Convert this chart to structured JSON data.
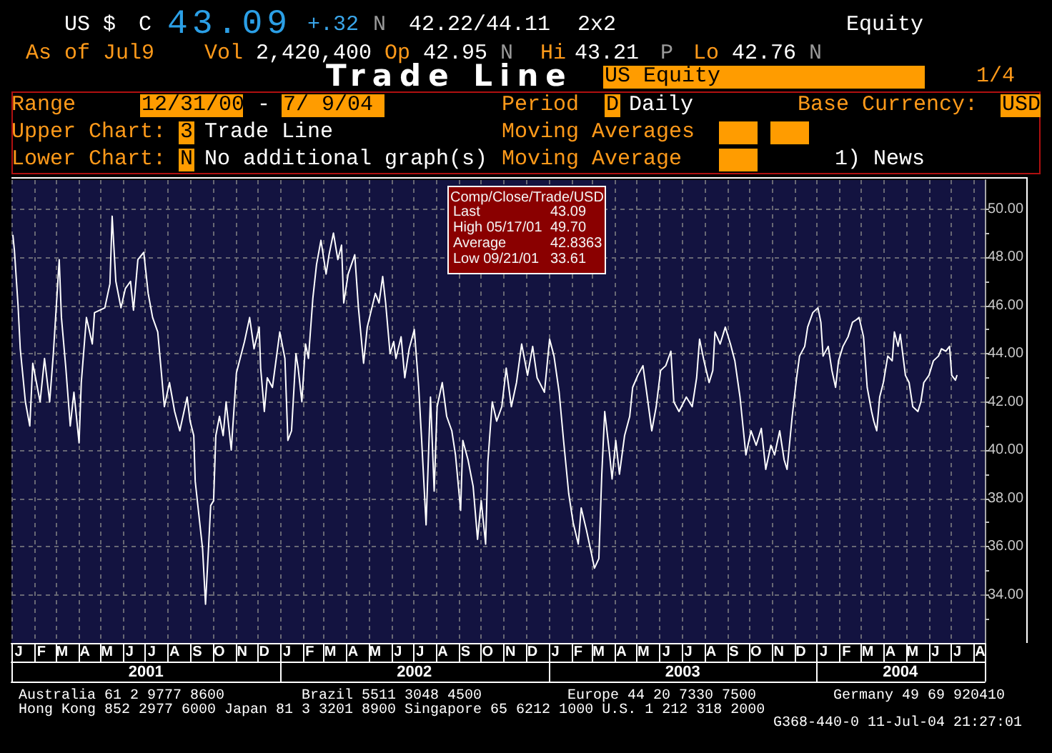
{
  "chart_data": {
    "type": "line",
    "title": "Trade Line",
    "annotations": [
      "US $",
      "C",
      "43.09",
      "+.32",
      "N",
      "42.22/44.11",
      "2x2",
      "Equity",
      "As of Jul9",
      "Vol",
      "2,420,400",
      "Op",
      "42.95",
      "N",
      "Hi",
      "43.21",
      "P",
      "Lo",
      "42.76",
      "N",
      "US Equity",
      "1/4",
      "Range",
      "12/31/00",
      "-",
      "7/ 9/04",
      "Period",
      "D",
      "Daily",
      "Base Currency:",
      "USD",
      "Upper Chart:",
      "3",
      "Trade Line",
      "Moving Averages",
      "Lower Chart:",
      "N",
      "No additional graph(s)",
      "Moving Average",
      "1) News",
      "Comp/Close/Trade/USD",
      "Last",
      "43.09",
      "High 05/17/01",
      "49.70",
      "Average",
      "42.8363",
      "Low 09/21/01",
      "33.61",
      "J",
      "F",
      "M",
      "A",
      "M",
      "J",
      "J",
      "A",
      "S",
      "O",
      "N",
      "D",
      "J",
      "F",
      "M",
      "A",
      "M",
      "J",
      "J",
      "A",
      "S",
      "O",
      "N",
      "D",
      "J",
      "F",
      "M",
      "A",
      "M",
      "J",
      "J",
      "A",
      "S",
      "O",
      "N",
      "D",
      "J",
      "F",
      "M",
      "A",
      "M",
      "J",
      "J",
      "A",
      "Australia 61 2 9777 8600",
      "Brazil 5511 3048 4500",
      "Europe 44 20 7330 7500",
      "Germany 49 69 920410",
      "Hong Kong 852 2977 6000 Japan 81 3 3201 8900 Singapore 65 6212 1000 U.S. 1 212 318 2000",
      "G368-440-0 11-Jul-04 21:27:01"
    ],
    "x": [
      "2001-01-02",
      "2001-01-04",
      "2001-01-09",
      "2001-01-12",
      "2001-01-19",
      "2001-01-25",
      "2001-01-29",
      "2001-02-08",
      "2001-02-14",
      "2001-02-21",
      "2001-02-26",
      "2001-03-06",
      "2001-03-09",
      "2001-03-15",
      "2001-03-21",
      "2001-03-26",
      "2001-04-02",
      "2001-04-05",
      "2001-04-12",
      "2001-04-20",
      "2001-04-23",
      "2001-05-07",
      "2001-05-14",
      "2001-05-17",
      "2001-05-22",
      "2001-05-29",
      "2001-06-04",
      "2001-06-11",
      "2001-06-15",
      "2001-06-21",
      "2001-06-29",
      "2001-07-05",
      "2001-07-11",
      "2001-07-18",
      "2001-07-23",
      "2001-07-27",
      "2001-08-03",
      "2001-08-10",
      "2001-08-17",
      "2001-08-27",
      "2001-08-31",
      "2001-09-05",
      "2001-09-07",
      "2001-09-17",
      "2001-09-21",
      "2001-09-25",
      "2001-09-28",
      "2001-10-02",
      "2001-10-05",
      "2001-10-10",
      "2001-10-15",
      "2001-10-19",
      "2001-10-26",
      "2001-11-02",
      "2001-11-13",
      "2001-11-20",
      "2001-11-26",
      "2001-12-03",
      "2001-12-05",
      "2001-12-10",
      "2001-12-14",
      "2001-12-21",
      "2001-12-31",
      "2002-01-07",
      "2002-01-11",
      "2002-01-16",
      "2002-01-22",
      "2002-01-25",
      "2002-01-30",
      "2002-02-04",
      "2002-02-08",
      "2002-02-14",
      "2002-02-19",
      "2002-02-25",
      "2002-03-04",
      "2002-03-08",
      "2002-03-14",
      "2002-03-20",
      "2002-03-25",
      "2002-03-28",
      "2002-04-03",
      "2002-04-12",
      "2002-04-17",
      "2002-04-24",
      "2002-04-29",
      "2002-05-10",
      "2002-05-15",
      "2002-05-20",
      "2002-05-24",
      "2002-05-30",
      "2002-06-04",
      "2002-06-07",
      "2002-06-14",
      "2002-06-19",
      "2002-06-25",
      "2002-07-02",
      "2002-07-08",
      "2002-07-12",
      "2002-07-18",
      "2002-07-24",
      "2002-07-29",
      "2002-08-02",
      "2002-08-09",
      "2002-08-15",
      "2002-08-22",
      "2002-08-27",
      "2002-09-03",
      "2002-09-06",
      "2002-09-13",
      "2002-09-20",
      "2002-09-26",
      "2002-10-01",
      "2002-10-07",
      "2002-10-10",
      "2002-10-16",
      "2002-10-22",
      "2002-10-29",
      "2002-11-04",
      "2002-11-11",
      "2002-11-18",
      "2002-11-25",
      "2002-12-03",
      "2002-12-10",
      "2002-12-16",
      "2002-12-26",
      "2003-01-02",
      "2003-01-08",
      "2003-01-15",
      "2003-01-21",
      "2003-01-28",
      "2003-02-03",
      "2003-02-10",
      "2003-02-14",
      "2003-02-21",
      "2003-02-28",
      "2003-03-04",
      "2003-03-10",
      "2003-03-14",
      "2003-03-18",
      "2003-03-24",
      "2003-03-28",
      "2003-04-02",
      "2003-04-07",
      "2003-04-14",
      "2003-04-21",
      "2003-04-25",
      "2003-05-02",
      "2003-05-09",
      "2003-05-14",
      "2003-05-21",
      "2003-05-27",
      "2003-06-02",
      "2003-06-09",
      "2003-06-16",
      "2003-06-20",
      "2003-06-27",
      "2003-07-07",
      "2003-07-15",
      "2003-07-21",
      "2003-07-25",
      "2003-07-31",
      "2003-08-07",
      "2003-08-12",
      "2003-08-15",
      "2003-08-22",
      "2003-08-29",
      "2003-09-05",
      "2003-09-11",
      "2003-09-18",
      "2003-09-22",
      "2003-09-26",
      "2003-10-03",
      "2003-10-10",
      "2003-10-17",
      "2003-10-23",
      "2003-10-30",
      "2003-11-04",
      "2003-11-11",
      "2003-11-17",
      "2003-11-21",
      "2003-11-28",
      "2003-12-04",
      "2003-12-08",
      "2003-12-15",
      "2003-12-19",
      "2003-12-26",
      "2004-01-02",
      "2004-01-06",
      "2004-01-09",
      "2004-01-16",
      "2004-01-21",
      "2004-01-26",
      "2004-01-30",
      "2004-02-05",
      "2004-02-12",
      "2004-02-18",
      "2004-02-23",
      "2004-02-27",
      "2004-03-04",
      "2004-03-09",
      "2004-03-15",
      "2004-03-18",
      "2004-03-22",
      "2004-03-26",
      "2004-03-31",
      "2004-04-06",
      "2004-04-12",
      "2004-04-15",
      "2004-04-20",
      "2004-04-23",
      "2004-04-30",
      "2004-05-05",
      "2004-05-10",
      "2004-05-17",
      "2004-05-21",
      "2004-05-25",
      "2004-06-01",
      "2004-06-07",
      "2004-06-14",
      "2004-06-18",
      "2004-06-24",
      "2004-06-29",
      "2004-07-02",
      "2004-07-07",
      "2004-07-09"
    ],
    "values": [
      48.9,
      48.3,
      46.0,
      44.2,
      42.0,
      41.0,
      43.6,
      42.0,
      43.8,
      42.0,
      44.0,
      47.9,
      45.5,
      43.4,
      41.0,
      42.4,
      40.3,
      42.8,
      45.5,
      44.4,
      45.7,
      45.9,
      46.9,
      49.7,
      47.0,
      45.9,
      46.7,
      47.0,
      45.8,
      47.9,
      48.2,
      46.5,
      45.5,
      44.9,
      43.2,
      41.8,
      42.8,
      41.6,
      40.8,
      42.2,
      41.2,
      40.6,
      38.7,
      35.9,
      33.61,
      35.9,
      37.7,
      37.9,
      40.6,
      41.4,
      40.6,
      42.0,
      40.0,
      43.2,
      44.5,
      45.5,
      44.2,
      45.1,
      43.4,
      41.6,
      43.0,
      42.6,
      44.9,
      43.8,
      40.4,
      40.8,
      44.0,
      43.4,
      42.0,
      44.4,
      43.8,
      46.3,
      47.7,
      48.7,
      47.3,
      48.1,
      49.0,
      47.9,
      48.5,
      46.1,
      47.3,
      48.1,
      45.9,
      43.6,
      45.1,
      46.5,
      46.1,
      47.2,
      46.1,
      44.0,
      44.5,
      43.8,
      44.7,
      43.0,
      44.2,
      45.0,
      42.6,
      40.4,
      36.9,
      42.2,
      38.3,
      41.8,
      42.8,
      41.4,
      40.8,
      39.8,
      37.5,
      40.4,
      39.6,
      38.5,
      36.3,
      37.9,
      36.1,
      39.5,
      42.0,
      41.2,
      41.8,
      43.4,
      41.8,
      42.8,
      44.4,
      43.1,
      44.3,
      43.0,
      42.4,
      44.6,
      43.9,
      42.4,
      40.4,
      38.2,
      37.0,
      36.1,
      37.6,
      36.7,
      35.7,
      35.1,
      35.5,
      39.0,
      41.6,
      40.0,
      38.8,
      40.4,
      39.0,
      40.6,
      41.4,
      42.6,
      43.1,
      43.5,
      42.4,
      40.8,
      41.8,
      43.3,
      43.5,
      44.1,
      42.0,
      41.6,
      42.2,
      41.8,
      43.0,
      44.6,
      43.7,
      42.8,
      43.3,
      44.9,
      44.4,
      45.1,
      44.4,
      43.7,
      42.2,
      41.0,
      39.8,
      40.8,
      40.2,
      40.9,
      39.2,
      40.2,
      39.8,
      40.8,
      39.6,
      39.2,
      41.4,
      43.0,
      43.9,
      44.3,
      45.1,
      45.7,
      45.9,
      45.3,
      43.9,
      44.3,
      43.3,
      42.6,
      43.7,
      44.3,
      44.7,
      45.3,
      45.4,
      45.5,
      44.7,
      42.6,
      41.6,
      41.2,
      40.8,
      42.2,
      42.8,
      43.9,
      43.7,
      44.9,
      44.3,
      44.8,
      43.1,
      42.8,
      41.8,
      41.6,
      42.0,
      42.8,
      43.1,
      43.7,
      43.9,
      44.2,
      44.1,
      44.3,
      43.1,
      42.9,
      43.09
    ],
    "color": "#ffffff",
    "marker": "none",
    "line_style": "solid",
    "xlim": [
      "2000-12-31",
      "2004-08-16"
    ],
    "xticks": [
      {
        "value": "2001-01-01",
        "label": null
      },
      {
        "value": "2001-02-01",
        "label": null
      },
      {
        "value": "2001-03-01",
        "label": null
      },
      {
        "value": "2001-04-01",
        "label": null
      },
      {
        "value": "2001-05-01",
        "label": null
      },
      {
        "value": "2001-06-01",
        "label": null
      },
      {
        "value": "2001-07-01",
        "label": null
      },
      {
        "value": "2001-07-02",
        "label": "2001"
      },
      {
        "value": "2001-08-01",
        "label": null
      },
      {
        "value": "2001-09-01",
        "label": null
      },
      {
        "value": "2001-10-01",
        "label": null
      },
      {
        "value": "2001-11-01",
        "label": null
      },
      {
        "value": "2001-12-01",
        "label": null
      },
      {
        "value": "2002-01-01",
        "label": null
      },
      {
        "value": "2002-02-01",
        "label": null
      },
      {
        "value": "2002-03-01",
        "label": null
      },
      {
        "value": "2002-04-01",
        "label": null
      },
      {
        "value": "2002-05-01",
        "label": null
      },
      {
        "value": "2002-06-01",
        "label": null
      },
      {
        "value": "2002-07-01",
        "label": null
      },
      {
        "value": "2002-07-02",
        "label": "2002"
      },
      {
        "value": "2002-08-01",
        "label": null
      },
      {
        "value": "2002-09-01",
        "label": null
      },
      {
        "value": "2002-10-01",
        "label": null
      },
      {
        "value": "2002-11-01",
        "label": null
      },
      {
        "value": "2002-12-01",
        "label": null
      },
      {
        "value": "2003-01-01",
        "label": null
      },
      {
        "value": "2003-02-01",
        "label": null
      },
      {
        "value": "2003-03-01",
        "label": null
      },
      {
        "value": "2003-04-01",
        "label": null
      },
      {
        "value": "2003-05-01",
        "label": null
      },
      {
        "value": "2003-06-01",
        "label": null
      },
      {
        "value": "2003-07-01",
        "label": null
      },
      {
        "value": "2003-07-02",
        "label": "2003"
      },
      {
        "value": "2003-08-01",
        "label": null
      },
      {
        "value": "2003-09-01",
        "label": null
      },
      {
        "value": "2003-10-01",
        "label": null
      },
      {
        "value": "2003-11-01",
        "label": null
      },
      {
        "value": "2003-12-01",
        "label": null
      },
      {
        "value": "2004-01-01",
        "label": null
      },
      {
        "value": "2004-02-01",
        "label": null
      },
      {
        "value": "2004-03-01",
        "label": null
      },
      {
        "value": "2004-04-01",
        "label": null
      },
      {
        "value": "2004-04-23",
        "label": "2004"
      },
      {
        "value": "2004-05-01",
        "label": null
      },
      {
        "value": "2004-06-01",
        "label": null
      },
      {
        "value": "2004-07-01",
        "label": null
      },
      {
        "value": "2004-08-01",
        "label": null
      },
      {
        "value": "2004-08-16",
        "label": null
      }
    ],
    "ylim": [
      32,
      51.2
    ],
    "yticks": [
      {
        "value": 33,
        "label": null
      },
      {
        "value": 34,
        "label": "34.00"
      },
      {
        "value": 35,
        "label": null
      },
      {
        "value": 36,
        "label": "36.00"
      },
      {
        "value": 37,
        "label": null
      },
      {
        "value": 38,
        "label": "38.00"
      },
      {
        "value": 39,
        "label": null
      },
      {
        "value": 40,
        "label": "40.00"
      },
      {
        "value": 41,
        "label": null
      },
      {
        "value": 42,
        "label": "42.00"
      },
      {
        "value": 43,
        "label": null
      },
      {
        "value": 44,
        "label": "44.00"
      },
      {
        "value": 45,
        "label": null
      },
      {
        "value": 46,
        "label": "46.00"
      },
      {
        "value": 47,
        "label": null
      },
      {
        "value": 48,
        "label": "48.00"
      },
      {
        "value": 49,
        "label": null
      },
      {
        "value": 50,
        "label": "50.00"
      }
    ],
    "grid": true
  }
}
